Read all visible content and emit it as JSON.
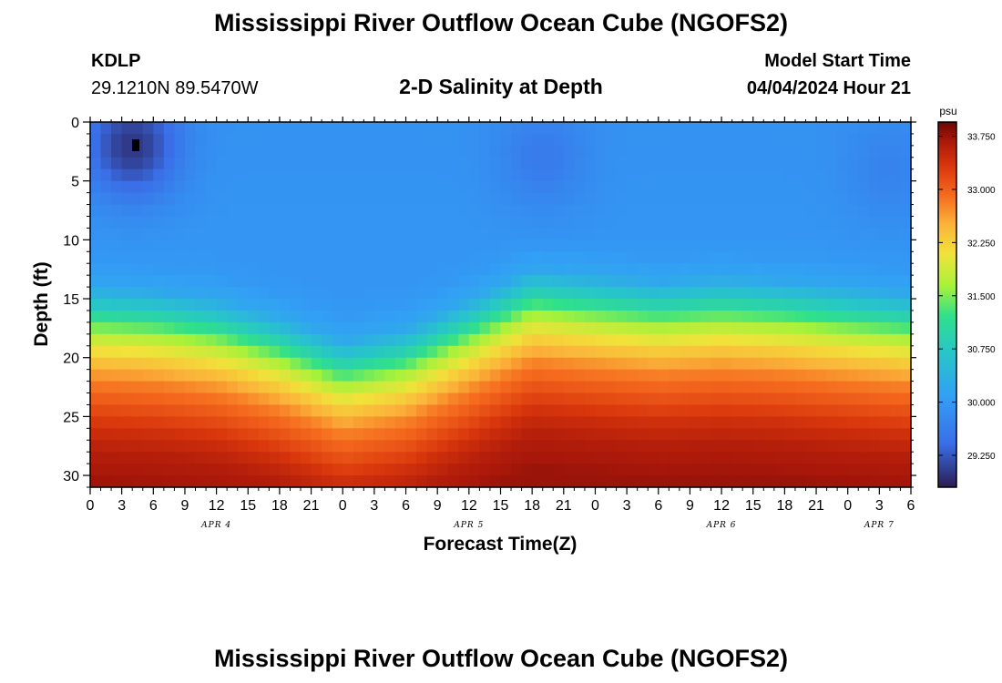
{
  "header": {
    "title": "Mississippi River Outflow Ocean Cube (NGOFS2)",
    "station": "KDLP",
    "coords": "29.1210N  89.5470W",
    "subtitle": "2-D Salinity at Depth",
    "model_start_label": "Model Start Time",
    "model_start_value": "04/04/2024 Hour 21"
  },
  "footer": {
    "title": "Mississippi River Outflow Ocean Cube (NGOFS2)"
  },
  "colors": {
    "low": "#2a1d52",
    "mid": "#32a0f5",
    "green": "#a6f23a",
    "yellow": "#fbb33a",
    "high": "#7a0805"
  },
  "chart_data": {
    "type": "heatmap",
    "xlabel": "Forecast Time(Z)",
    "ylabel": "Depth (ft)",
    "colorbar_unit": "psu",
    "x_ticks": [
      "0",
      "3",
      "6",
      "9",
      "12",
      "15",
      "18",
      "21",
      "0",
      "3",
      "6",
      "9",
      "12",
      "15",
      "18",
      "21",
      "0",
      "3",
      "6",
      "9",
      "12",
      "15",
      "18",
      "21",
      "0",
      "3",
      "6"
    ],
    "x_range_hours": [
      0,
      78
    ],
    "date_labels": [
      {
        "text": "APR 4",
        "hour": 12
      },
      {
        "text": "APR 5",
        "hour": 36
      },
      {
        "text": "APR 6",
        "hour": 60
      },
      {
        "text": "APR 7",
        "hour": 75
      }
    ],
    "y_ticks": [
      "0",
      "5",
      "10",
      "15",
      "20",
      "25",
      "30"
    ],
    "y_range": [
      0,
      31
    ],
    "y_inverted": true,
    "colorbar_ticks": [
      "33.750",
      "33.000",
      "32.250",
      "31.500",
      "30.750",
      "30.000",
      "29.250"
    ],
    "colorbar_range": [
      28.8,
      33.95
    ],
    "salinity_profile": {
      "depths": [
        0,
        10,
        12,
        14,
        16,
        18,
        20,
        22,
        24,
        26,
        28,
        31
      ],
      "values": [
        29.9,
        29.95,
        30.0,
        30.2,
        30.9,
        31.7,
        32.3,
        32.8,
        33.1,
        33.4,
        33.6,
        33.75
      ]
    },
    "halocline_depth_trend": {
      "hours": [
        0,
        6,
        12,
        18,
        24,
        30,
        36,
        42,
        48,
        54,
        60,
        66,
        72,
        78
      ],
      "depth_ft": [
        17.0,
        17.3,
        18.0,
        19.5,
        21.5,
        20.5,
        18.0,
        15.5,
        16.0,
        16.5,
        16.2,
        16.5,
        17.0,
        17.5
      ]
    },
    "low_salinity_cores": [
      {
        "hour": 4,
        "depth_ft": 2,
        "value": 29.0
      },
      {
        "hour": 43,
        "depth_ft": 3,
        "value": 29.6
      },
      {
        "hour": 76,
        "depth_ft": 4,
        "value": 29.7
      }
    ]
  }
}
